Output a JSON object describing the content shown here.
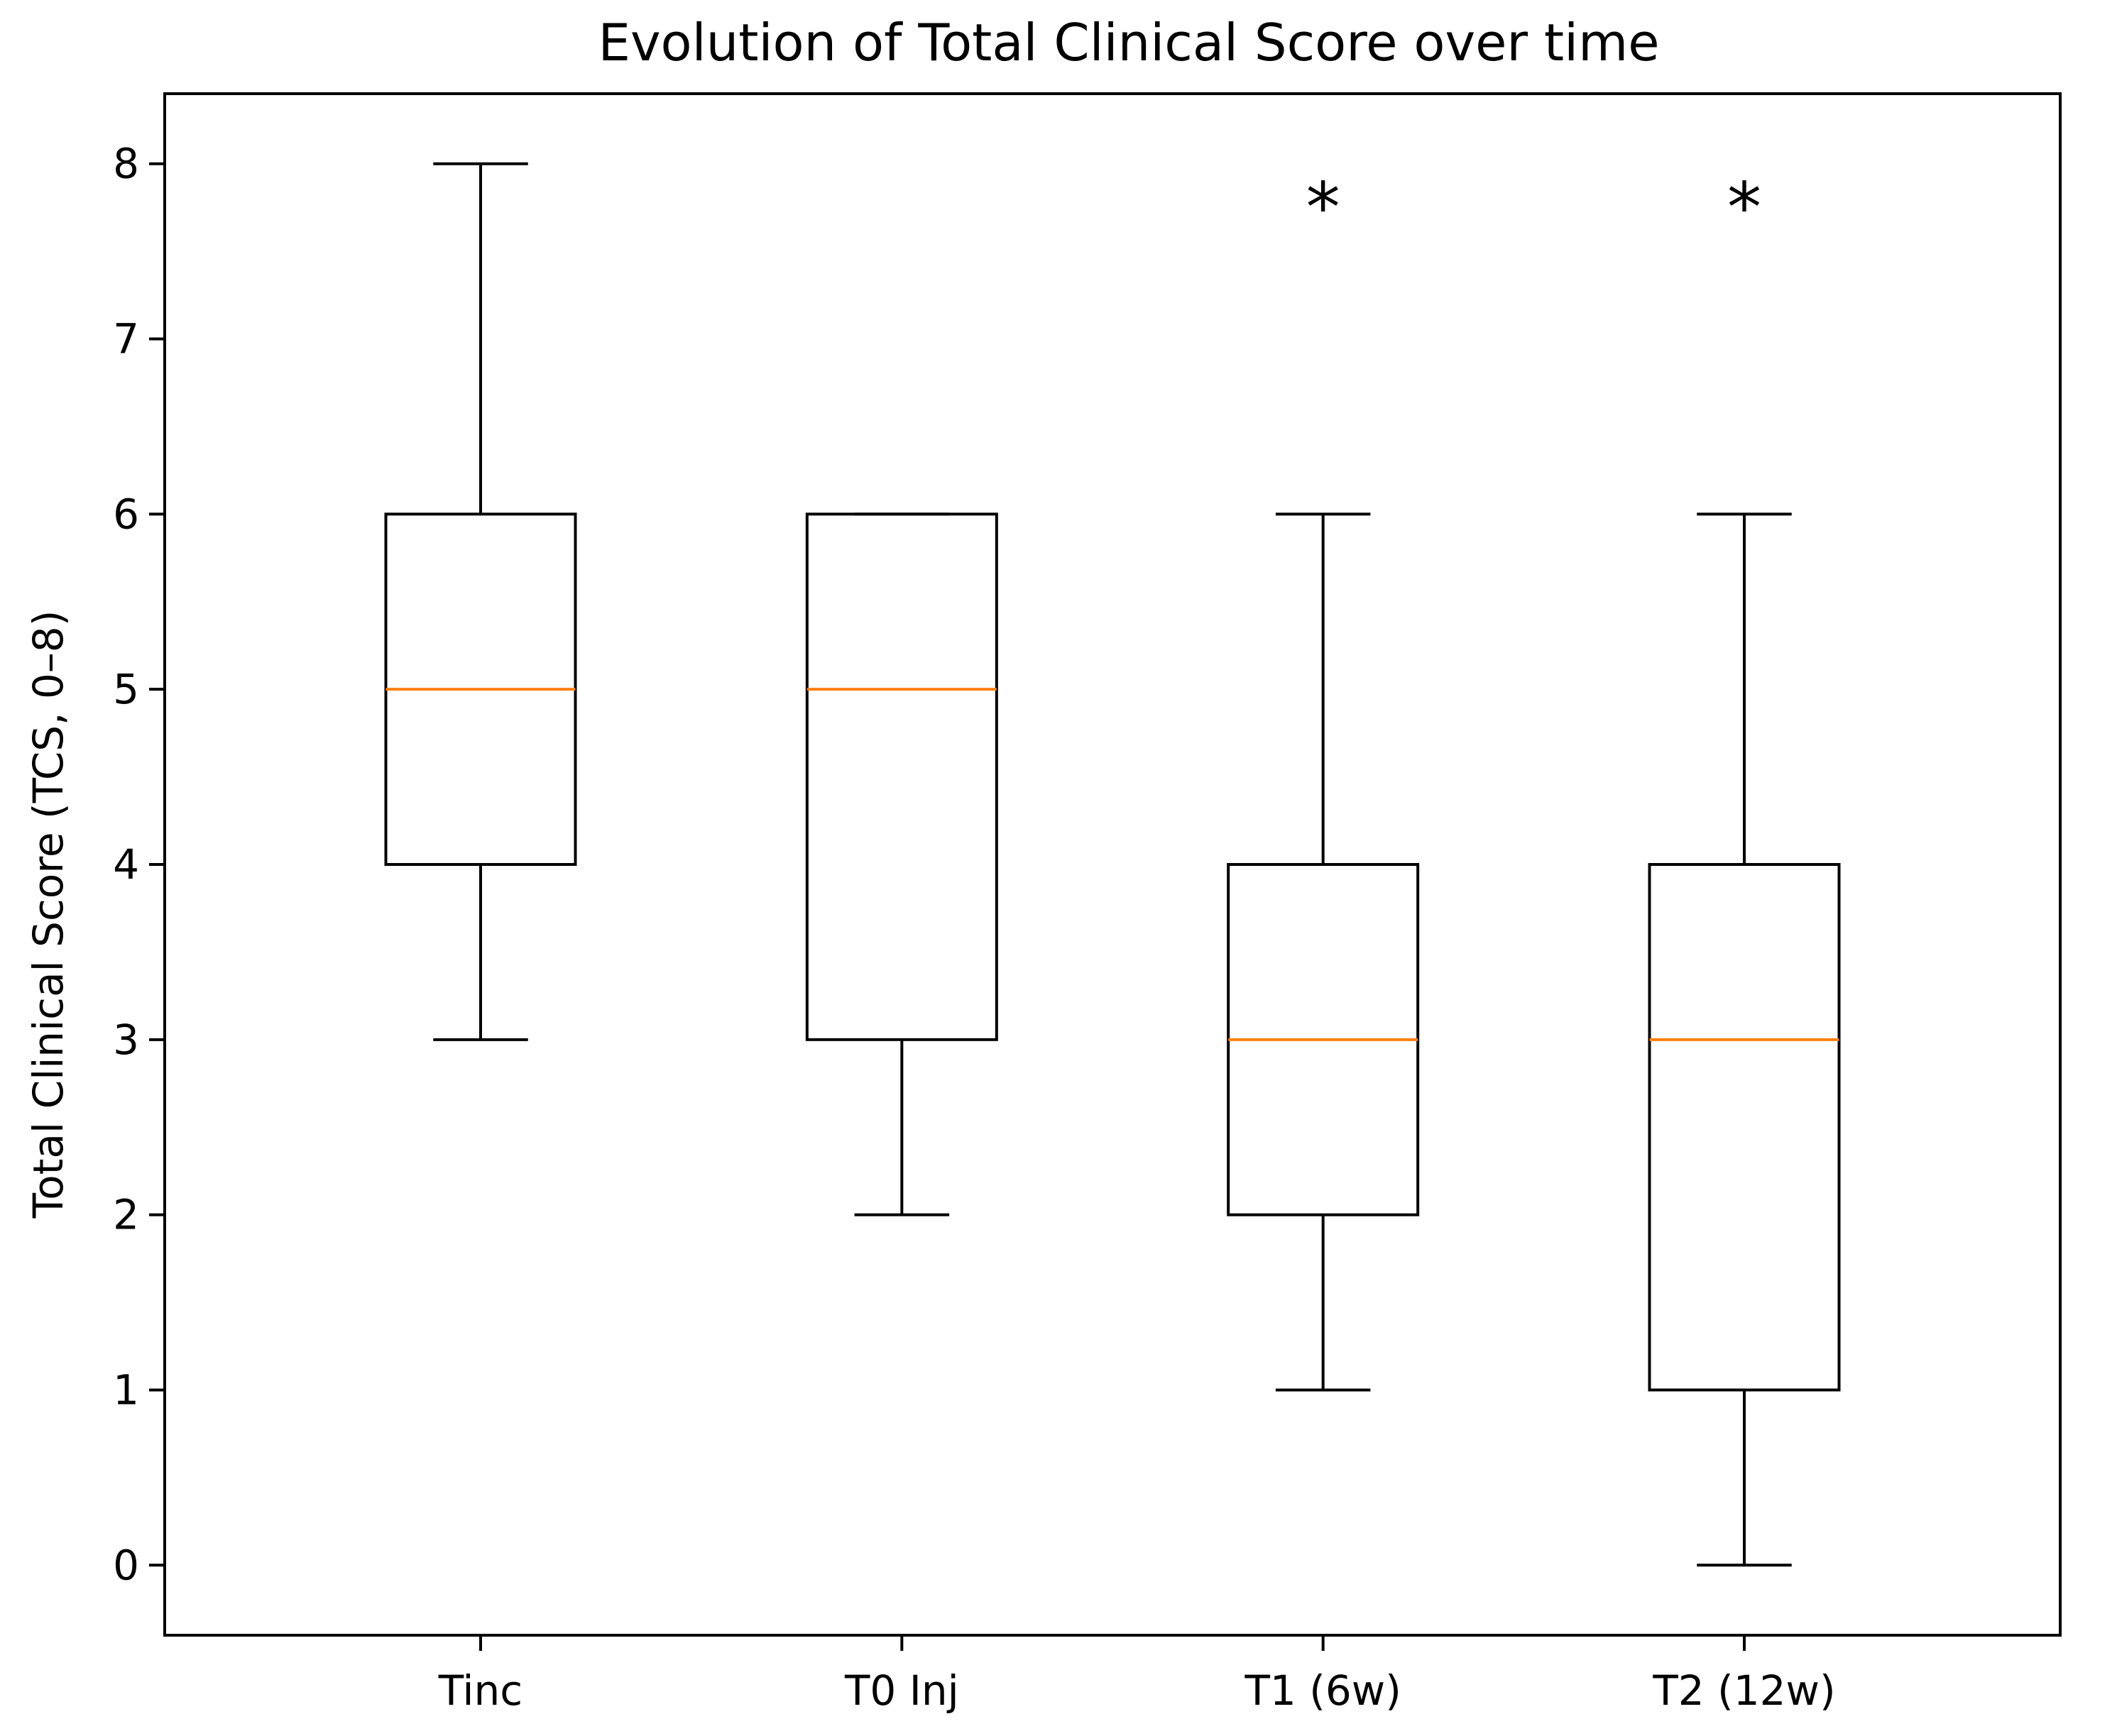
{
  "chart_data": {
    "type": "box",
    "title": "Evolution of Total Clinical Score over time",
    "xlabel": "",
    "ylabel": "Total Clinical Score (TCS, 0–8)",
    "ylim": [
      -0.4,
      8.4
    ],
    "yticks": [
      0,
      1,
      2,
      3,
      4,
      5,
      6,
      7,
      8
    ],
    "categories": [
      "Tinc",
      "T0 Inj",
      "T1 (6w)",
      "T2 (12w)"
    ],
    "boxes": [
      {
        "label": "Tinc",
        "whisker_low": 3,
        "q1": 4,
        "median": 5,
        "q3": 6,
        "whisker_high": 8,
        "annotation": ""
      },
      {
        "label": "T0 Inj",
        "whisker_low": 2,
        "q1": 3,
        "median": 5,
        "q3": 6,
        "whisker_high": 6,
        "annotation": ""
      },
      {
        "label": "T1 (6w)",
        "whisker_low": 1,
        "q1": 2,
        "median": 3,
        "q3": 4,
        "whisker_high": 6,
        "annotation": "*"
      },
      {
        "label": "T2 (12w)",
        "whisker_low": 0,
        "q1": 1,
        "median": 3,
        "q3": 4,
        "whisker_high": 6,
        "annotation": "*"
      }
    ],
    "colors": {
      "box": "#000000",
      "median": "#ff7f0e"
    },
    "grid": false,
    "legend": "none"
  }
}
